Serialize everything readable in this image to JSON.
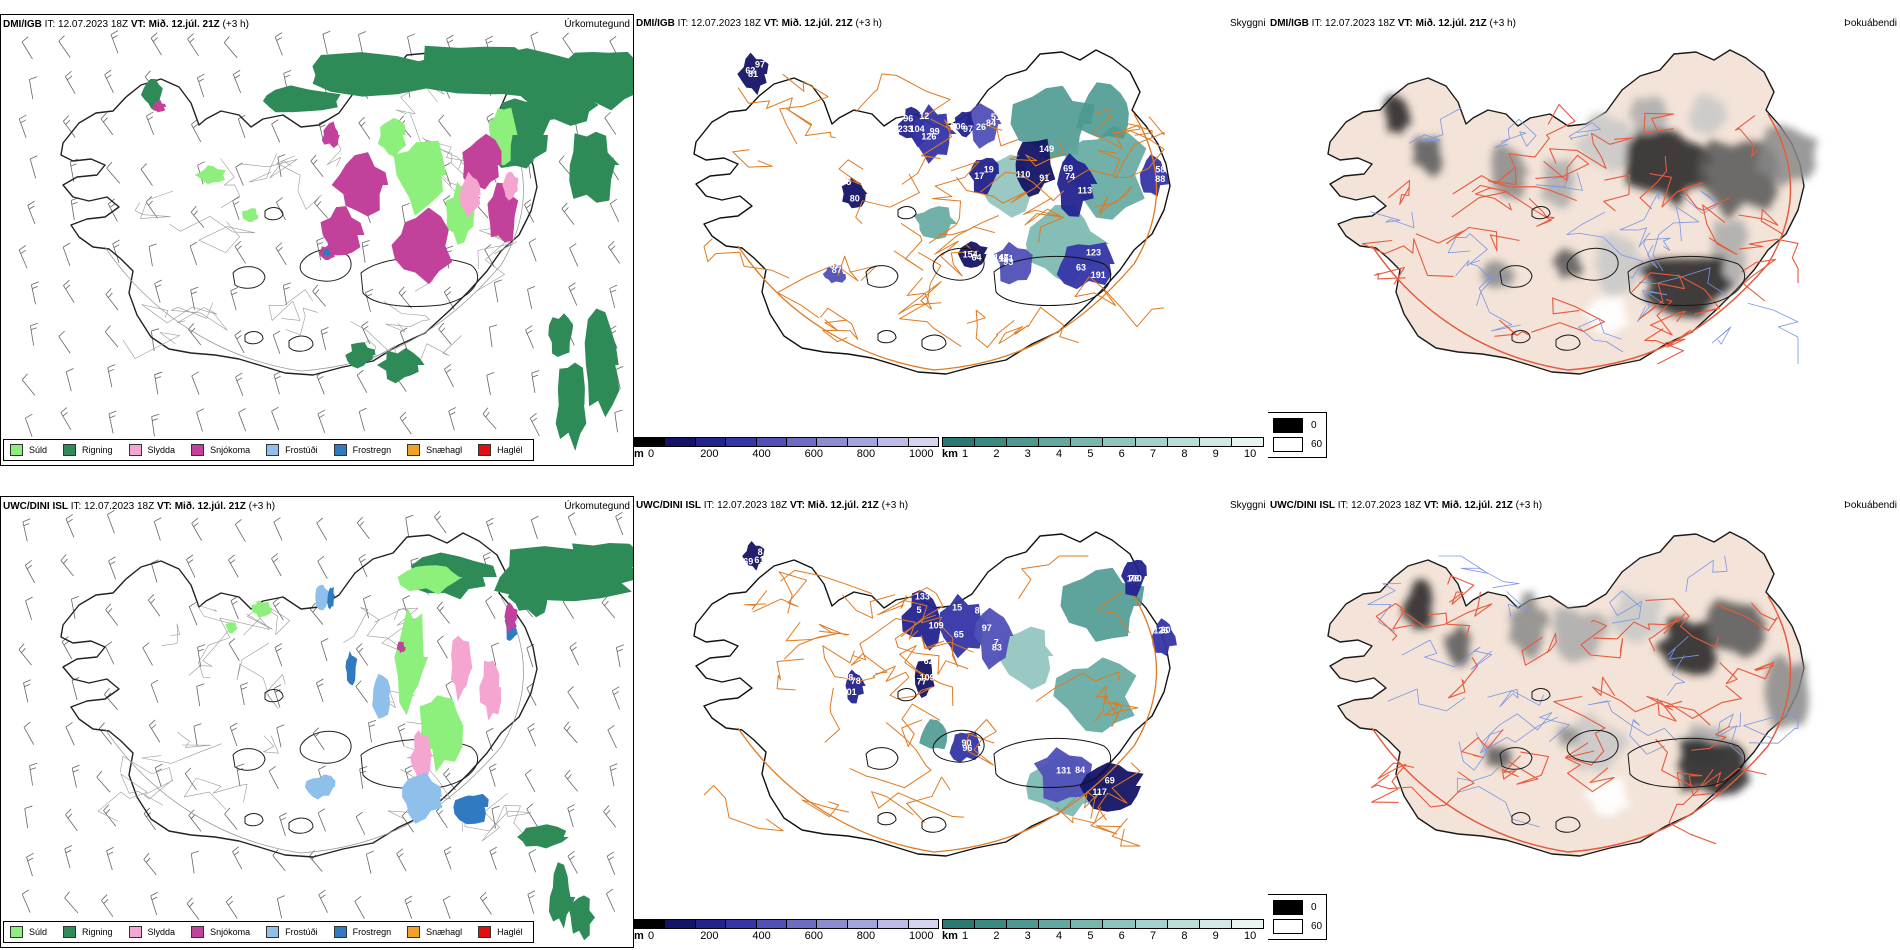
{
  "panels": [
    {
      "id": "r1c1",
      "title_model": "DMI/IGB",
      "title_it": " IT: 12.07.2023 18Z ",
      "title_vt": "VT: Mið. 12.júl. 21Z",
      "title_lead": " (+3 h)",
      "type": "Úrkomutegund"
    },
    {
      "id": "r1c2",
      "title_model": "DMI/IGB",
      "title_it": " IT: 12.07.2023 18Z ",
      "title_vt": "VT: Mið. 12.júl. 21Z",
      "title_lead": " (+3 h)",
      "type": "Skyggni"
    },
    {
      "id": "r1c3",
      "title_model": "DMI/IGB",
      "title_it": " IT: 12.07.2023 18Z ",
      "title_vt": "VT: Mið. 12.júl. 21Z",
      "title_lead": " (+3 h)",
      "type": "Þokuábendi"
    },
    {
      "id": "r2c1",
      "title_model": "UWC/DINI ISL",
      "title_it": " IT: 12.07.2023 18Z ",
      "title_vt": "VT: Mið. 12.júl. 21Z",
      "title_lead": " (+3 h)",
      "type": "Úrkomutegund"
    },
    {
      "id": "r2c2",
      "title_model": "UWC/DINI ISL",
      "title_it": " IT: 12.07.2023 18Z ",
      "title_vt": "VT: Mið. 12.júl. 21Z",
      "title_lead": " (+3 h)",
      "type": "Skyggni"
    },
    {
      "id": "r2c3",
      "title_model": "UWC/DINI ISL",
      "title_it": " IT: 12.07.2023 18Z ",
      "title_vt": "VT: Mið. 12.júl. 21Z",
      "title_lead": " (+3 h)",
      "type": "Þokuábendi"
    }
  ],
  "precip_legend": [
    {
      "label": "Súld",
      "color": "#8ef07c"
    },
    {
      "label": "Rigning",
      "color": "#2e8b57"
    },
    {
      "label": "Slydda",
      "color": "#f4a6d0"
    },
    {
      "label": "Snjókoma",
      "color": "#c2419b"
    },
    {
      "label": "Frostúði",
      "color": "#8fc0ec"
    },
    {
      "label": "Frostregn",
      "color": "#2f7ac0"
    },
    {
      "label": "Snæhagl",
      "color": "#f2a02a"
    },
    {
      "label": "Haglél",
      "color": "#e01010"
    }
  ],
  "vis_scale_m": {
    "unit": "m",
    "ticks": [
      "0",
      "200",
      "400",
      "600",
      "800",
      "1000"
    ],
    "colors": [
      "#000000",
      "#141466",
      "#23238e",
      "#3535a8",
      "#5050b8",
      "#6c6cc4",
      "#8c8cd0",
      "#a4a4dc",
      "#bcbce6",
      "#d4d4ef"
    ]
  },
  "vis_scale_km": {
    "unit": "km",
    "ticks": [
      "1",
      "2",
      "3",
      "4",
      "5",
      "6",
      "7",
      "8",
      "9",
      "10"
    ],
    "colors": [
      "#2a7a73",
      "#3b8a82",
      "#4d9991",
      "#62a8a0",
      "#78b6af",
      "#8fc3bd",
      "#a6d0cb",
      "#bcdcd8",
      "#d3e8e5",
      "#e9f3f2"
    ]
  },
  "fog_legend": {
    "values": [
      "0",
      "60"
    ],
    "colors": [
      "#000000",
      "#ffffff"
    ]
  },
  "vis_labels_top": [
    "81",
    "96",
    "12",
    "84",
    "91",
    "69",
    "63",
    "93",
    "154",
    "19",
    "58",
    "67",
    "75",
    "97",
    "62",
    "104",
    "99",
    "51",
    "149",
    "74",
    "191",
    "151",
    "64",
    "17",
    "88",
    "87",
    "80",
    "206",
    "97",
    "233",
    "126",
    "26",
    "110",
    "113",
    "123",
    "147"
  ],
  "vis_labels_bottom": [
    "69",
    "109",
    "15",
    "97",
    "109",
    "78",
    "90",
    "131",
    "69",
    "100",
    "20",
    "8",
    "5",
    "65",
    "7",
    "77",
    "98",
    "96",
    "84",
    "117",
    "76",
    "126",
    "61",
    "133",
    "87",
    "83",
    "62",
    "101"
  ],
  "colors": {
    "coast": "#111111",
    "roads": "#e07a1f",
    "land_fog": "#f3e3d8",
    "fog_roads": "#e85a3c",
    "fog_rivers": "#7a96e6"
  }
}
